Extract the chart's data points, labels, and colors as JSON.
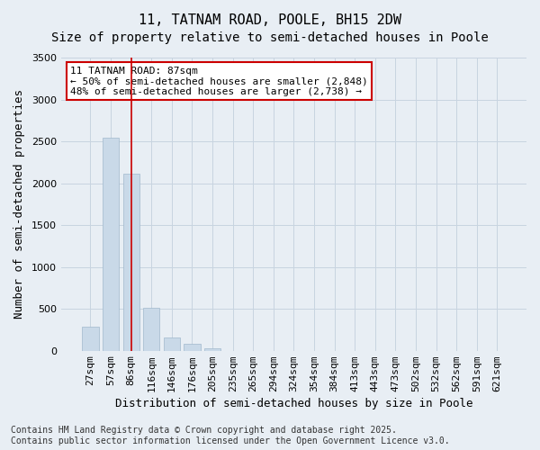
{
  "title1": "11, TATNAM ROAD, POOLE, BH15 2DW",
  "title2": "Size of property relative to semi-detached houses in Poole",
  "xlabel": "Distribution of semi-detached houses by size in Poole",
  "ylabel": "Number of semi-detached properties",
  "categories": [
    "27sqm",
    "57sqm",
    "86sqm",
    "116sqm",
    "146sqm",
    "176sqm",
    "205sqm",
    "235sqm",
    "265sqm",
    "294sqm",
    "324sqm",
    "354sqm",
    "384sqm",
    "413sqm",
    "443sqm",
    "473sqm",
    "502sqm",
    "532sqm",
    "562sqm",
    "591sqm",
    "621sqm"
  ],
  "values": [
    290,
    2540,
    2115,
    510,
    155,
    80,
    30,
    0,
    0,
    0,
    0,
    0,
    0,
    0,
    0,
    0,
    0,
    0,
    0,
    0,
    0
  ],
  "bar_color": "#c9d9e8",
  "bar_edge_color": "#a0b8cc",
  "grid_color": "#c8d4e0",
  "background_color": "#e8eef4",
  "vline_x_index": 2,
  "vline_color": "#cc0000",
  "annotation_text": "11 TATNAM ROAD: 87sqm\n← 50% of semi-detached houses are smaller (2,848)\n48% of semi-detached houses are larger (2,738) →",
  "annotation_box_color": "#ffffff",
  "annotation_edge_color": "#cc0000",
  "ylim": [
    0,
    3500
  ],
  "yticks": [
    0,
    500,
    1000,
    1500,
    2000,
    2500,
    3000,
    3500
  ],
  "footnote": "Contains HM Land Registry data © Crown copyright and database right 2025.\nContains public sector information licensed under the Open Government Licence v3.0.",
  "title1_fontsize": 11,
  "title2_fontsize": 10,
  "xlabel_fontsize": 9,
  "ylabel_fontsize": 9,
  "tick_fontsize": 8,
  "annotation_fontsize": 8,
  "footnote_fontsize": 7
}
